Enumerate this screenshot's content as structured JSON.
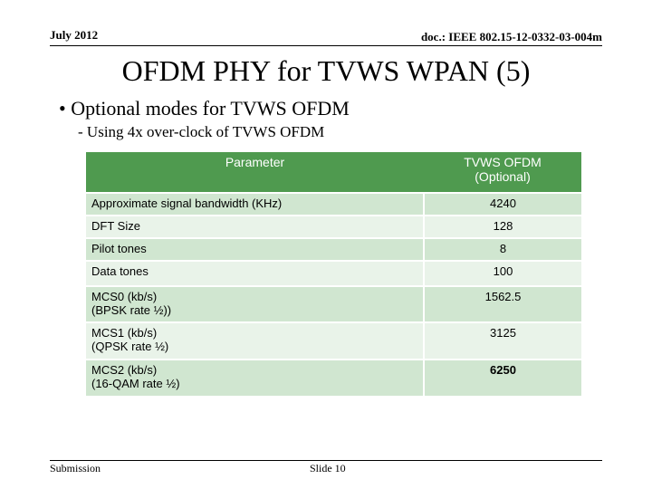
{
  "header": {
    "date": "July 2012",
    "doc": "doc.: IEEE 802.15-12-0332-03-004m"
  },
  "title": "OFDM PHY for TVWS WPAN (5)",
  "bullet": "Optional modes for TVWS OFDM",
  "sub_bullet": "Using 4x over-clock of TVWS OFDM",
  "table": {
    "columns": [
      "Parameter",
      "TVWS OFDM\n(Optional)"
    ],
    "rows": [
      [
        "Approximate  signal bandwidth (KHz)",
        "4240"
      ],
      [
        "DFT Size",
        "128"
      ],
      [
        "Pilot tones",
        "8"
      ],
      [
        "Data tones",
        "100"
      ],
      [
        "MCS0 (kb/s)\n(BPSK rate ½))",
        "1562.5"
      ],
      [
        "MCS1 (kb/s)\n(QPSK rate ½)",
        "3125"
      ],
      [
        "MCS2 (kb/s)\n(16-QAM rate ½)",
        "6250"
      ]
    ]
  },
  "footer": {
    "left": "Submission",
    "slide": "Slide 10"
  }
}
